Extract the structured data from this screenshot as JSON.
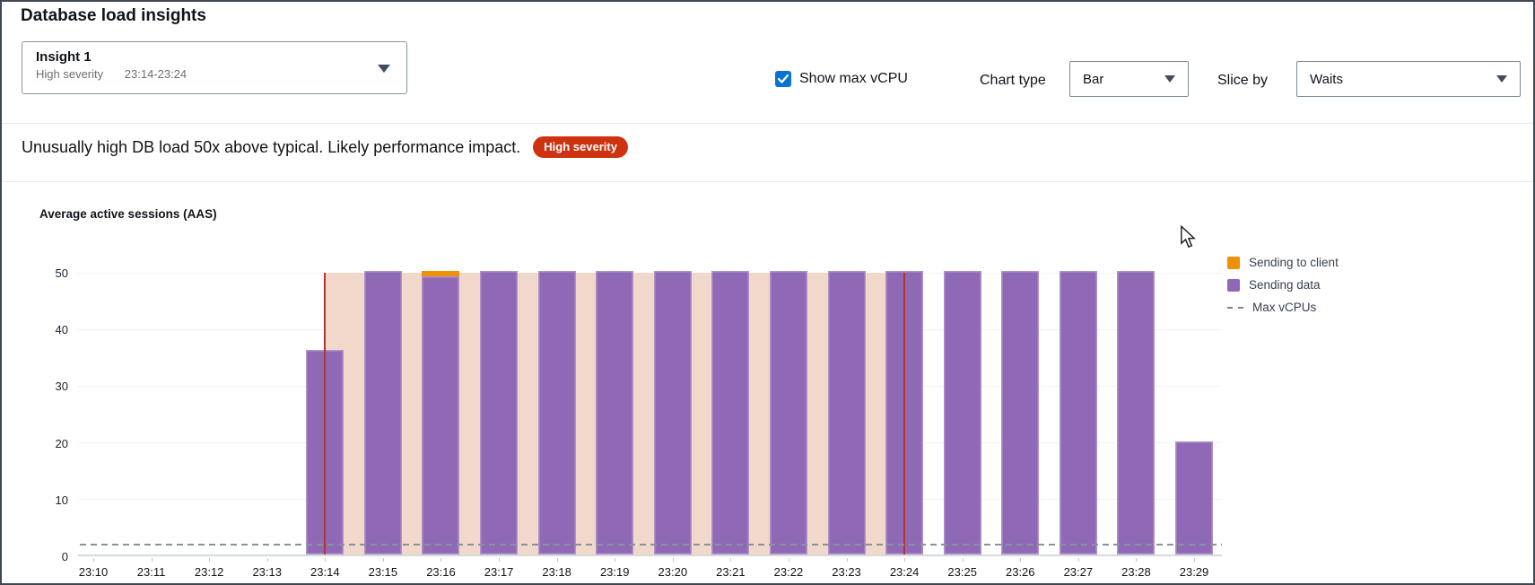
{
  "page": {
    "title": "Database load insights"
  },
  "controls": {
    "insight_selector": {
      "name": "Insight 1",
      "severity": "High severity",
      "time_range": "23:14-23:24"
    },
    "show_max_vcpu_label": "Show max vCPU",
    "show_max_vcpu_checked": true,
    "chart_type_label": "Chart type",
    "chart_type_value": "Bar",
    "slice_by_label": "Slice by",
    "slice_by_value": "Waits"
  },
  "alert": {
    "message": "Unusually high DB load 50x above typical. Likely performance impact.",
    "badge_label": "High severity",
    "badge_color": "#ce3311"
  },
  "chart_data": {
    "type": "bar",
    "stacked": true,
    "title": "Average active sessions (AAS)",
    "categories": [
      "23:10",
      "23:11",
      "23:12",
      "23:13",
      "23:14",
      "23:15",
      "23:16",
      "23:17",
      "23:18",
      "23:19",
      "23:20",
      "23:21",
      "23:22",
      "23:23",
      "23:24",
      "23:25",
      "23:26",
      "23:27",
      "23:28",
      "23:29"
    ],
    "series": [
      {
        "name": "Sending to client",
        "color": "#ef9008",
        "values": [
          0,
          0,
          0,
          0,
          0,
          0,
          1,
          0,
          0,
          0,
          0,
          0,
          0,
          0,
          0,
          0,
          0,
          0,
          0,
          0
        ]
      },
      {
        "name": "Sending data",
        "color": "#9069b6",
        "values": [
          0,
          0,
          0,
          0,
          36,
          50,
          49,
          50,
          50,
          50,
          50,
          50,
          50,
          50,
          50,
          50,
          50,
          50,
          50,
          20
        ]
      }
    ],
    "ylim": [
      0,
      50
    ],
    "yticks": [
      0,
      10,
      20,
      30,
      40,
      50
    ],
    "grid": true,
    "max_vcpus_line": {
      "label": "Max vCPUs",
      "value": 2,
      "style": "dashed",
      "color": "#87929a"
    },
    "highlight_region": {
      "from": "23:14",
      "to": "23:24",
      "fill": "#f2d8cb",
      "edge_color": "#b5352c"
    },
    "legend_position": "right",
    "legend": [
      {
        "label": "Sending to client",
        "marker": "square",
        "color": "#ef9008"
      },
      {
        "label": "Sending data",
        "marker": "square",
        "color": "#9069b6"
      },
      {
        "label": "Max vCPUs",
        "marker": "dashed-line",
        "color": "#78838d"
      }
    ]
  }
}
